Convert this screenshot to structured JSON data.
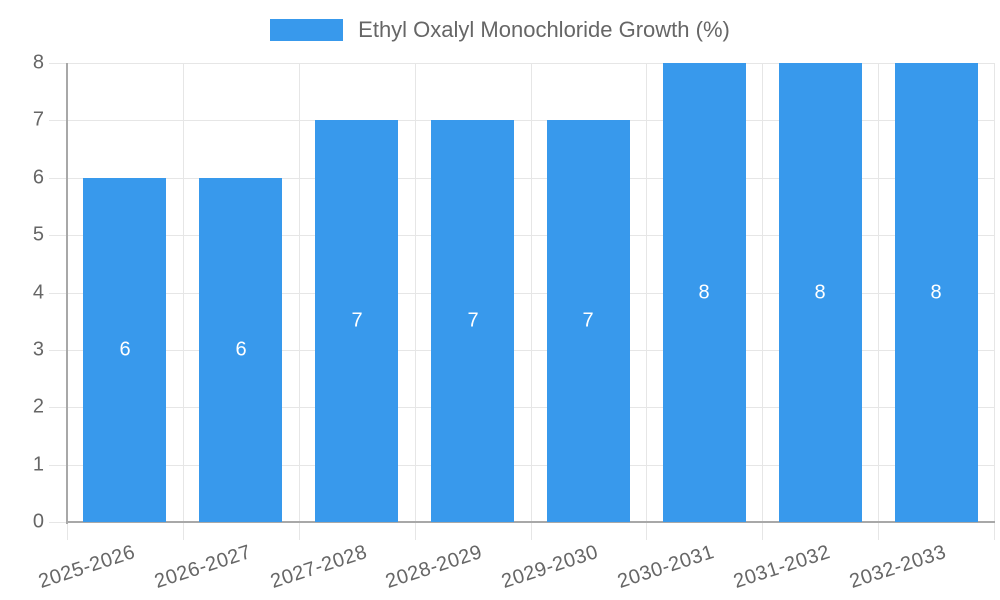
{
  "chart_data": {
    "type": "bar",
    "title": "Ethyl Oxalyl Monochloride Growth (%)",
    "legend_position": "top",
    "categories": [
      "2025-2026",
      "2026-2027",
      "2027-2028",
      "2028-2029",
      "2029-2030",
      "2030-2031",
      "2031-2032",
      "2032-2033"
    ],
    "values": [
      6,
      6,
      7,
      7,
      7,
      8,
      8,
      8
    ],
    "xlabel": "",
    "ylabel": "",
    "ylim": [
      0,
      8
    ],
    "yticks": [
      0,
      1,
      2,
      3,
      4,
      5,
      6,
      7,
      8
    ],
    "grid": true,
    "bar_value_labels_visible": true,
    "colors": {
      "bar": "#3899ec",
      "grid": "#e6e6e6",
      "axis": "#a8a8a8",
      "tick_text": "#666666",
      "bar_label_text": "#ffffff",
      "background": "#ffffff"
    }
  }
}
